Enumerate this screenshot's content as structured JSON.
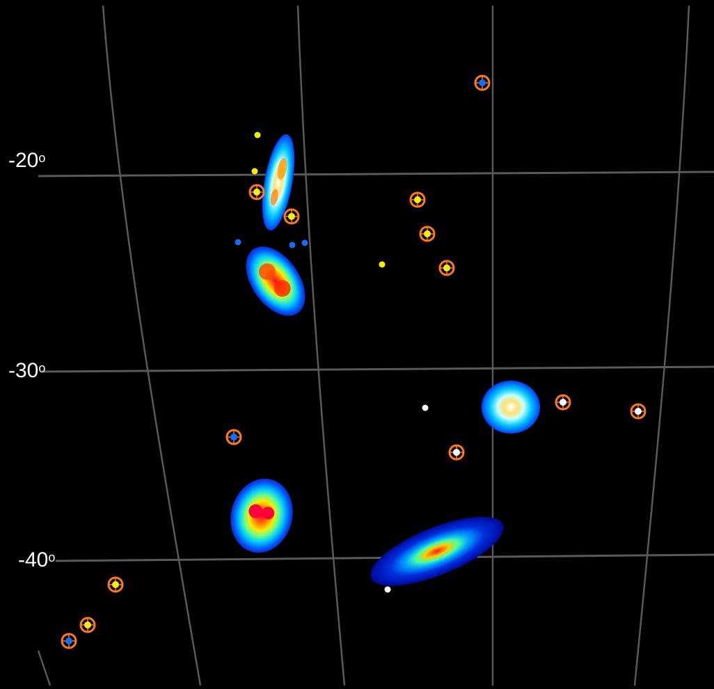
{
  "dec_labels": [
    {
      "value": "-20",
      "unit": "o"
    },
    {
      "value": "-30",
      "unit": "o"
    },
    {
      "value": "-40",
      "unit": "o"
    }
  ],
  "colors": {
    "grid": "#5a5a5a",
    "ring": "#ff7a1a",
    "dot_yellow": "#ffee00",
    "dot_white": "#ffffff",
    "dot_blue": "#1a6bff"
  }
}
